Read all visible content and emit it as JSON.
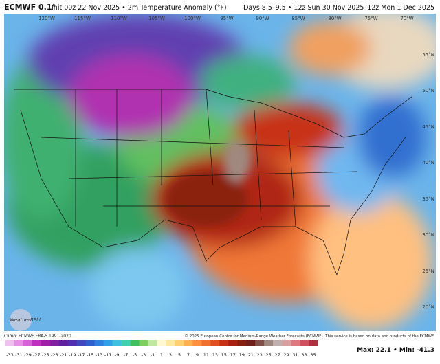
{
  "header": {
    "model": "ECMWF 0.1°",
    "init": "Init 00z 22 Nov 2025 • 2m Temperature Anomaly (°F)",
    "valid": "Days 8.5–9.5 • 12z Sun 30 Nov 2025–12z Mon 1 Dec 2025"
  },
  "map": {
    "longitudes": [
      "120°W",
      "115°W",
      "110°W",
      "105°W",
      "100°W",
      "95°W",
      "90°W",
      "85°W",
      "80°W",
      "75°W",
      "70°W"
    ],
    "latitudes": [
      "55°N",
      "50°N",
      "45°N",
      "40°N",
      "35°N",
      "30°N",
      "25°N",
      "20°N"
    ]
  },
  "footer": {
    "climo": "Climo: ECMWF ERA-5 1991-2020",
    "copyright": "© 2025 European Centre for Medium-Range Weather Forecasts (ECMWF). This service is based on data and products of the ECMWF.",
    "logo": "WeatherBELL",
    "stats": "Max: 22.1 • Min: -41.3"
  },
  "colorbar": {
    "ticks": [
      -33,
      -31,
      -29,
      -27,
      -25,
      -23,
      -21,
      -19,
      -17,
      -15,
      -13,
      -11,
      -9,
      -7,
      -5,
      -3,
      -1,
      1,
      3,
      5,
      7,
      9,
      11,
      13,
      15,
      17,
      19,
      21,
      23,
      25,
      27,
      29,
      31,
      33,
      35
    ],
    "colors": [
      "#f0c0f0",
      "#e890e8",
      "#d860d8",
      "#c030c0",
      "#a020a8",
      "#8020a0",
      "#6020a0",
      "#5030b0",
      "#4048c0",
      "#3060d0",
      "#3080e0",
      "#30a0e8",
      "#40c0e0",
      "#40d0b0",
      "#40c060",
      "#80d060",
      "#c0e8a0",
      "#fff8d0",
      "#ffe8a0",
      "#ffd070",
      "#ffb050",
      "#ff9040",
      "#f07030",
      "#e05020",
      "#c83018",
      "#a82010",
      "#882010",
      "#702018",
      "#805048",
      "#a08880",
      "#c0b0b0",
      "#d8a0a0",
      "#e07880",
      "#d05060",
      "#b03040"
    ]
  }
}
